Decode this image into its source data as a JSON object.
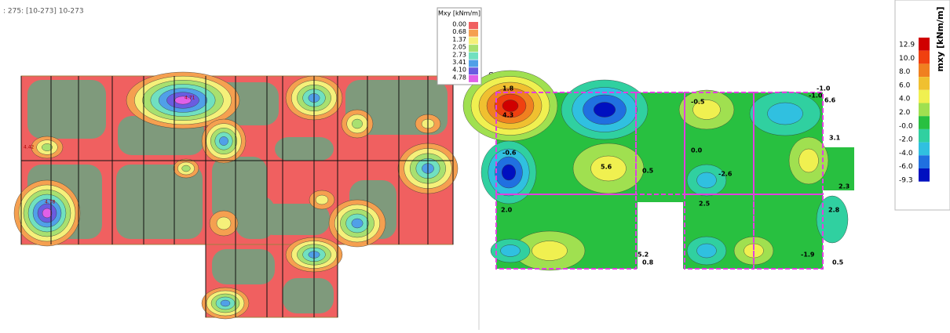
{
  "header": {
    "text": ": 275: [10-273] 10-273"
  },
  "left_legend": {
    "title": "Mxy [kNm/m]",
    "values": [
      "0.00",
      "0.68",
      "1.37",
      "2.05",
      "2.73",
      "3.41",
      "4.10",
      "4.78"
    ],
    "colors": [
      "#f06060",
      "#f5a050",
      "#f5f07a",
      "#a8e070",
      "#70e0c0",
      "#50a0e8",
      "#6a5ce0",
      "#e060e8"
    ]
  },
  "left_labels": [
    "4.42",
    "4.71",
    "4.78"
  ],
  "sustav": "Sustav:",
  "right_legend": {
    "title": "mxy [kNm/m]",
    "values": [
      "12.9",
      "10.0",
      "8.0",
      "6.0",
      "4.0",
      "2.0",
      "-0.0",
      "-2.0",
      "-4.0",
      "-6.0",
      "-9.3"
    ],
    "colors": [
      "#d00000",
      "#f04010",
      "#f08020",
      "#f0c030",
      "#f0f050",
      "#a0e050",
      "#28c040",
      "#30d0a0",
      "#30c0e0",
      "#2070e0",
      "#0010c0"
    ]
  },
  "right_labels": [
    "1.8",
    "4.3",
    "-0.6",
    "5.6",
    "2.0",
    "-1.0",
    "6.6",
    "-0.5",
    "-2.6",
    "3.1",
    "2.3",
    "2.8",
    "-1.9",
    "0.5",
    "2.5",
    "0.8",
    "5.2",
    "-1.0",
    "0.0",
    "0.5"
  ]
}
